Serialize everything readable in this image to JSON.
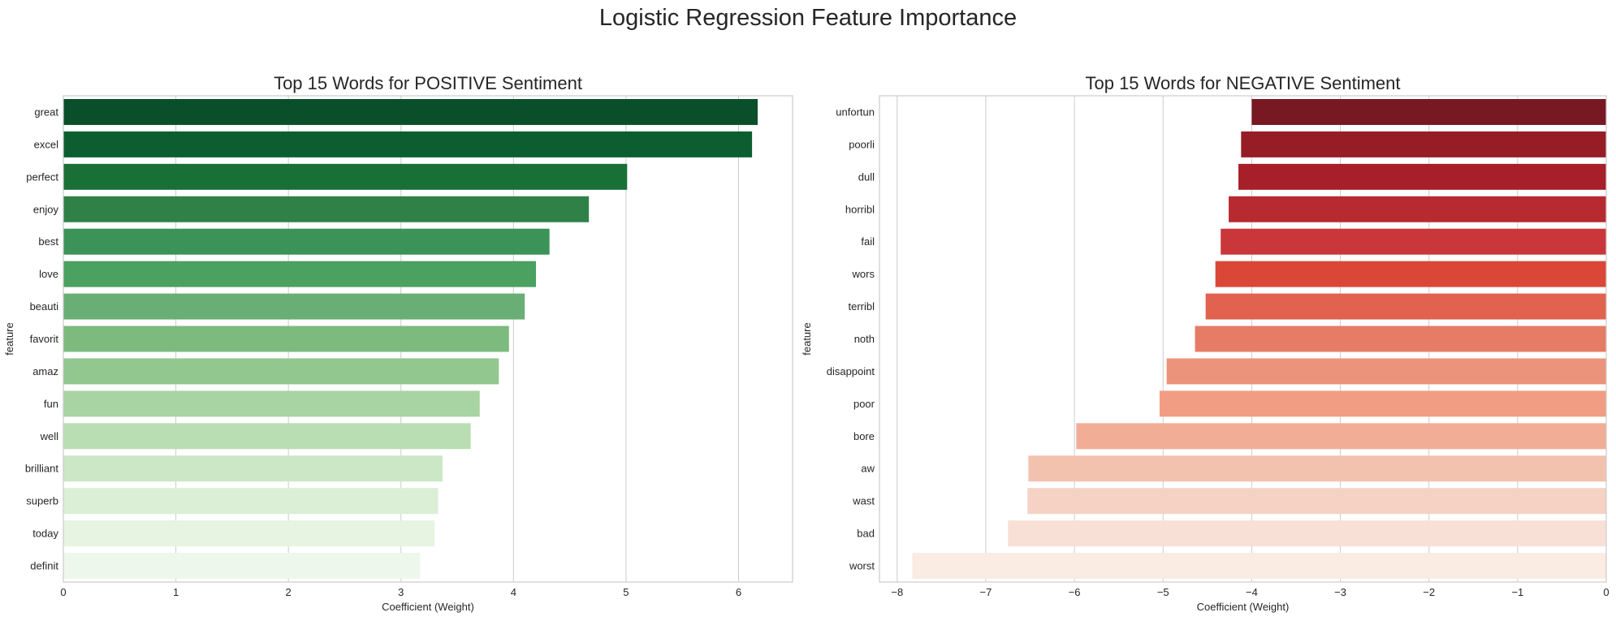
{
  "figure": {
    "suptitle": "Logistic Regression Feature Importance"
  },
  "chart_data": [
    {
      "type": "bar",
      "orientation": "horizontal",
      "title": "Top 15 Words for POSITIVE Sentiment",
      "xlabel": "Coefficient (Weight)",
      "ylabel": "feature",
      "xlim": [
        0,
        6.48
      ],
      "xticks": [
        "0",
        "1",
        "2",
        "3",
        "4",
        "5",
        "6"
      ],
      "grid": "vertical",
      "palette": "Greens",
      "categories": [
        "great",
        "excel",
        "perfect",
        "enjoy",
        "best",
        "love",
        "beauti",
        "favorit",
        "amaz",
        "fun",
        "well",
        "brilliant",
        "superb",
        "today",
        "definit"
      ],
      "values": [
        6.17,
        6.12,
        5.01,
        4.67,
        4.32,
        4.2,
        4.1,
        3.96,
        3.87,
        3.7,
        3.62,
        3.37,
        3.33,
        3.3,
        3.17
      ],
      "colors": [
        "#0a4f2a",
        "#0c5e30",
        "#187036",
        "#2f8148",
        "#3b9357",
        "#4aa160",
        "#69ae74",
        "#7dba7e",
        "#92c790",
        "#a7d4a2",
        "#badeb3",
        "#cbe7c6",
        "#dbeed6",
        "#e6f4e1",
        "#eef7eb"
      ]
    },
    {
      "type": "bar",
      "orientation": "horizontal",
      "title": "Top 15 Words for NEGATIVE Sentiment",
      "xlabel": "Coefficient (Weight)",
      "ylabel": "feature",
      "xlim": [
        -8.2,
        0
      ],
      "xticks": [
        "−8",
        "−7",
        "−6",
        "−5",
        "−4",
        "−3",
        "−2",
        "−1",
        "0"
      ],
      "grid": "vertical",
      "palette": "Reds",
      "categories": [
        "unfortun",
        "poorli",
        "dull",
        "horribl",
        "fail",
        "wors",
        "terribl",
        "noth",
        "disappoint",
        "poor",
        "bore",
        "aw",
        "wast",
        "bad",
        "worst"
      ],
      "values": [
        -4.0,
        -4.12,
        -4.15,
        -4.26,
        -4.35,
        -4.41,
        -4.52,
        -4.64,
        -4.96,
        -5.04,
        -5.98,
        -6.52,
        -6.53,
        -6.75,
        -7.83
      ],
      "colors": [
        "#771822",
        "#961d26",
        "#a61f29",
        "#b72a30",
        "#c9373a",
        "#db4737",
        "#e0624f",
        "#e77c66",
        "#ec947b",
        "#f09d83",
        "#f1ad96",
        "#f3c2ae",
        "#f5d2c3",
        "#f8e0d6",
        "#faebe3"
      ]
    }
  ]
}
